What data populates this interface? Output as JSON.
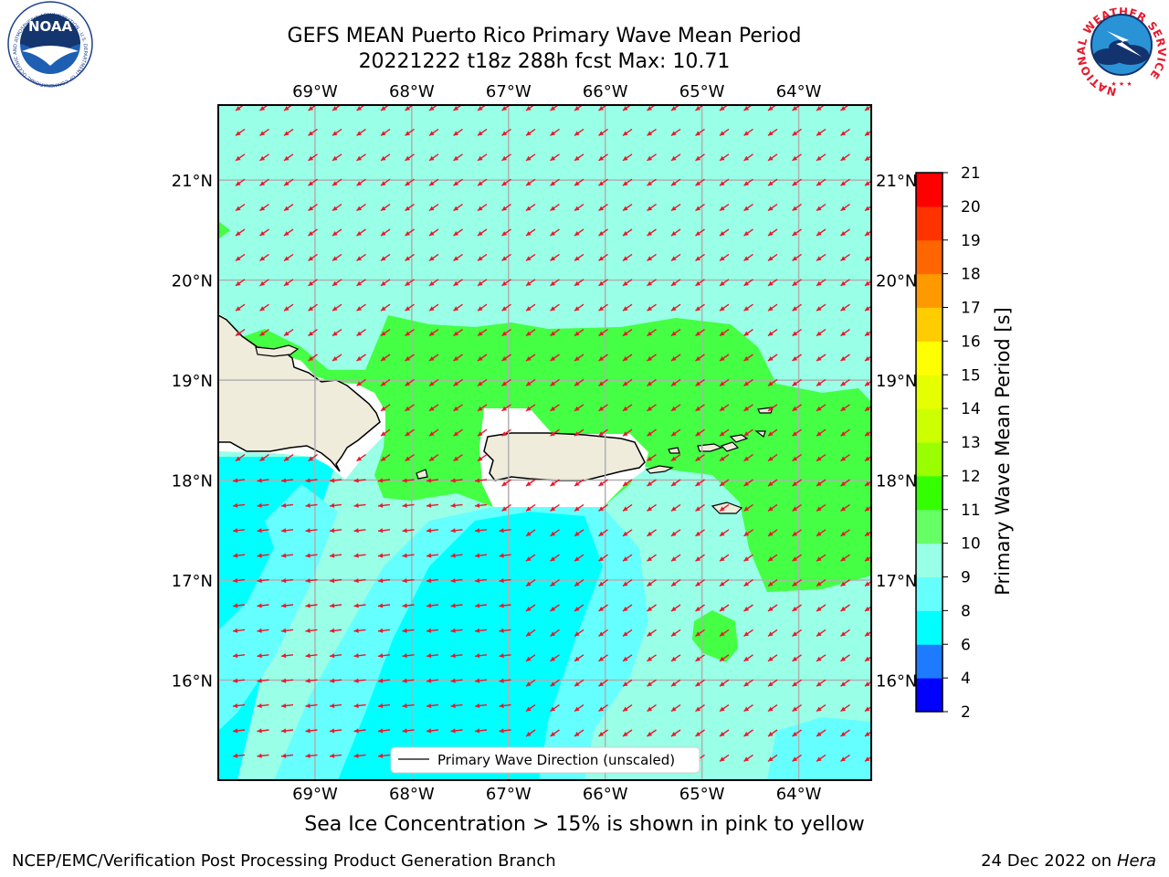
{
  "header": {
    "title_line1": "GEFS MEAN Puerto Rico Primary Wave Mean Period",
    "title_line2": "20221222 t18z 288h fcst   Max: 10.71",
    "logo_left_text": "NOAA",
    "logo_left_ring": "NATIONAL OCEANIC AND ATMOSPHERIC ADMINISTRATION · U.S. DEPARTMENT OF COMMERCE",
    "logo_right_ring": "NATIONAL WEATHER SERVICE"
  },
  "map": {
    "lon_labels": [
      "69°W",
      "68°W",
      "67°W",
      "66°W",
      "65°W",
      "64°W"
    ],
    "lat_labels": [
      "21°N",
      "20°N",
      "19°N",
      "18°N",
      "17°N",
      "16°N"
    ],
    "lon_range": [
      -70.0,
      -63.25
    ],
    "lat_range": [
      15.0,
      21.75
    ],
    "grid": true,
    "legend_label": "Primary Wave Direction (unscaled)",
    "arrow_color": "#e8192c",
    "coast_color": "#000000",
    "land_color": "#efecdc"
  },
  "colorbar": {
    "label": "Primary Wave Mean Period [s]",
    "levels": [
      2,
      4,
      6,
      8,
      9,
      10,
      11,
      12,
      13,
      14,
      15,
      16,
      17,
      18,
      19,
      20,
      21
    ],
    "colors": [
      "#0000ff",
      "#1e7bff",
      "#00ffff",
      "#66ffff",
      "#99ffe6",
      "#66ff66",
      "#33ff00",
      "#99ff00",
      "#ccff00",
      "#e6ff00",
      "#ffff00",
      "#ffcc00",
      "#ff9900",
      "#ff6600",
      "#ff3300",
      "#ff0000"
    ]
  },
  "field_colors": {
    "c6_8": "#00ffff",
    "c8_9": "#66ffff",
    "c9_10": "#99ffe6",
    "c10_11": "#44ff44"
  },
  "notes": {
    "sea_ice": "Sea Ice Concentration > 15% is shown in pink to yellow"
  },
  "footer": {
    "left": "NCEP/EMC/Verification Post Processing Product Generation Branch",
    "right_date": "24 Dec 2022 on",
    "right_host": "Hera"
  }
}
